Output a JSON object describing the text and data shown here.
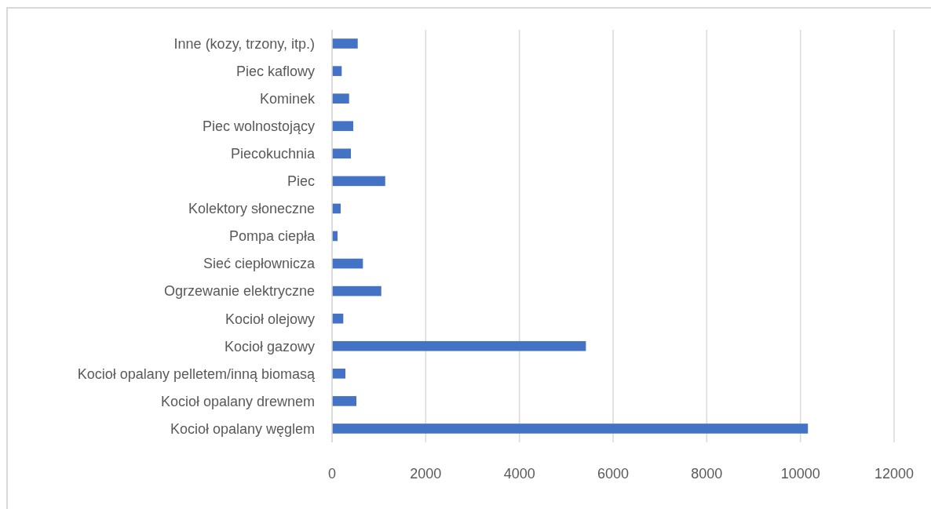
{
  "chart_data": {
    "type": "bar",
    "orientation": "horizontal",
    "categories": [
      "Inne (kozy, trzony, itp.)",
      "Piec kaflowy",
      "Kominek",
      "Piec wolnostojący",
      "Piecokuchnia",
      "Piec",
      "Kolektory słoneczne",
      "Pompa ciepła",
      "Sieć ciepłownicza",
      "Ogrzewanie elektryczne",
      "Kocioł olejowy",
      "Kocioł gazowy",
      "Kocioł opalany pelletem/inną biomasą",
      "Kocioł opalany drewnem",
      "Kocioł opalany węglem"
    ],
    "values": [
      548,
      206,
      364,
      453,
      402,
      1135,
      184,
      117,
      659,
      1051,
      240,
      5420,
      285,
      520,
      10160
    ],
    "color": "#4472c4",
    "xlim": [
      0,
      12000
    ],
    "xticks": [
      0,
      2000,
      4000,
      6000,
      8000,
      10000,
      12000
    ],
    "grid": "x"
  }
}
